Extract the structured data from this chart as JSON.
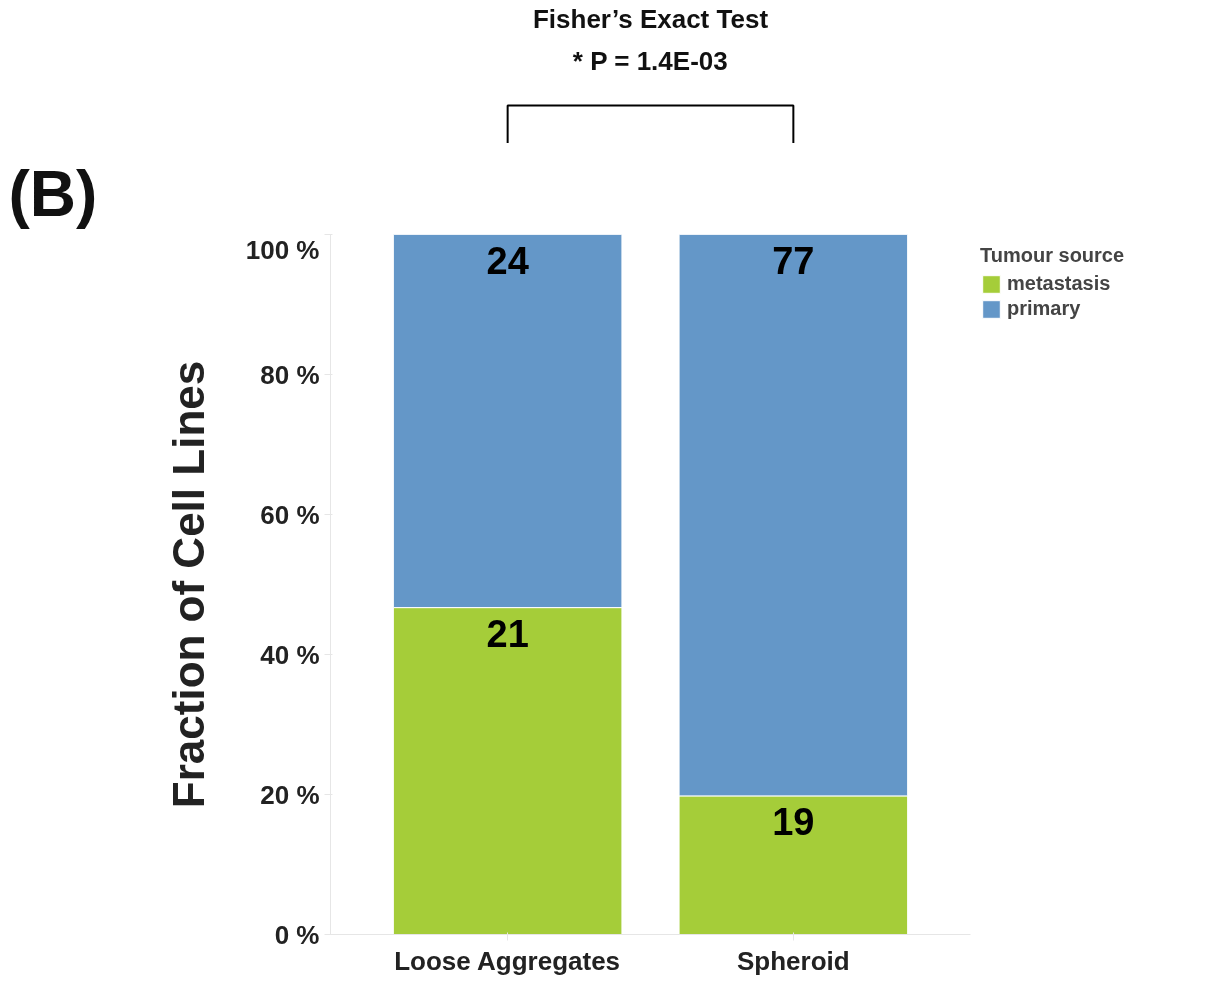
{
  "chart_data": {
    "type": "bar",
    "stacked": true,
    "ylabel": "Fraction of Cell Lines",
    "legend_title": "Tumour source",
    "legend": "right",
    "grid": false,
    "categories": [
      "Loose Aggregates",
      "Spheroid"
    ],
    "series": [
      {
        "name": "metastasis",
        "color": "#a5cd39",
        "values": [
          46.7,
          19.8
        ]
      },
      {
        "name": "primary",
        "color": "#6497c8",
        "values": [
          53.3,
          80.2
        ]
      }
    ],
    "ylim": [
      0,
      100
    ],
    "yticks": [
      {
        "value": 0,
        "label": "0 %"
      },
      {
        "value": 20,
        "label": "20 %"
      },
      {
        "value": 40,
        "label": "40 %"
      },
      {
        "value": 60,
        "label": "60 %"
      },
      {
        "value": 80,
        "label": "80 %"
      },
      {
        "value": 100,
        "label": "100 %"
      }
    ],
    "annotations": [
      "(B)",
      "Fisher’s Exact Test",
      "* P = 1.4E-03",
      "21",
      "19",
      "24",
      "77"
    ]
  }
}
